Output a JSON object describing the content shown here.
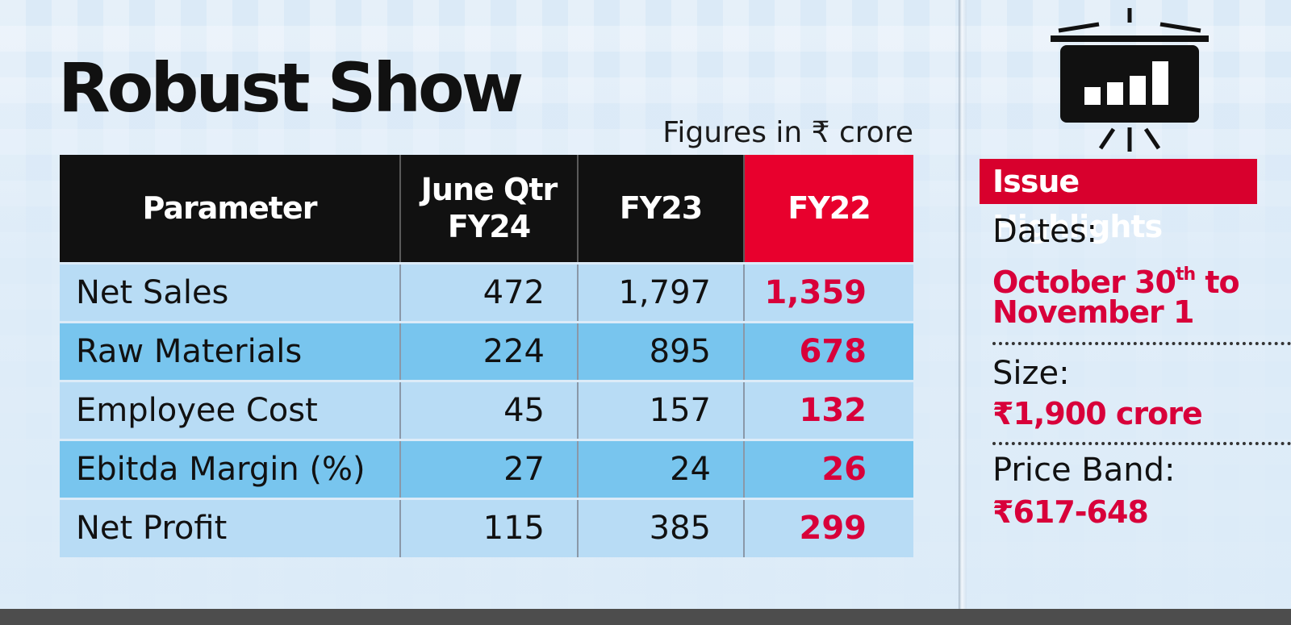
{
  "title": "Robust Show",
  "units_note": "Figures in ₹ crore",
  "table": {
    "headers": {
      "param": "Parameter",
      "june_line1": "June Qtr",
      "june_line2": "FY24",
      "fy23": "FY23",
      "fy22": "FY22"
    },
    "rows": [
      {
        "param": "Net Sales",
        "june": "472",
        "fy23": "1,797",
        "fy22": "1,359"
      },
      {
        "param": "Raw Materials",
        "june": "224",
        "fy23": "895",
        "fy22": "678"
      },
      {
        "param": "Employee Cost",
        "june": "45",
        "fy23": "157",
        "fy22": "132"
      },
      {
        "param": "Ebitda Margin (%)",
        "june": "27",
        "fy23": "24",
        "fy22": "26"
      },
      {
        "param": "Net Profit",
        "june": "115",
        "fy23": "385",
        "fy22": "299"
      }
    ]
  },
  "highlights": {
    "title": "Issue Highlights",
    "icon": "presentation-chart-icon",
    "dates_label": "Dates:",
    "dates_line1_pre": "October 30",
    "dates_line1_sup": "th",
    "dates_line1_post": " to",
    "dates_line2": "November 1",
    "size_label": "Size:",
    "size_value": "₹1,900 crore",
    "price_label": "Price Band:",
    "price_value": "₹617-648"
  },
  "colors": {
    "accent_red": "#d8003a",
    "header_black": "#111111",
    "row_light": "#b8dcf5",
    "row_dark": "#78c5ee"
  }
}
